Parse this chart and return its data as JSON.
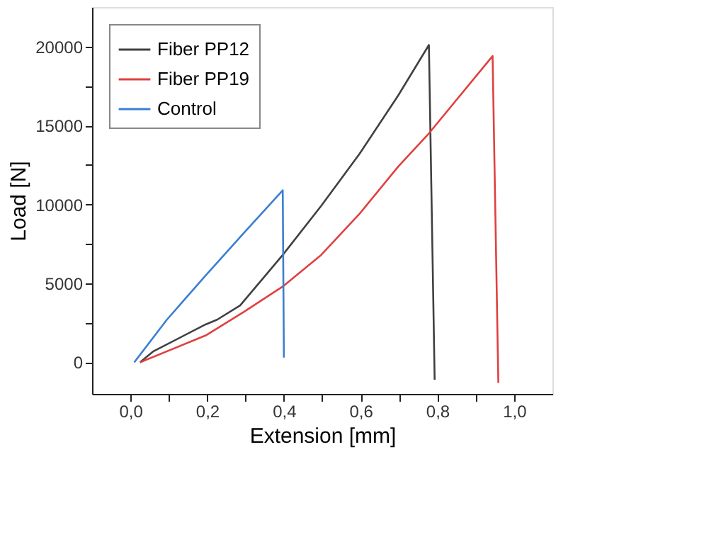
{
  "chart_data": {
    "type": "line",
    "xlabel": "Extension [mm]",
    "ylabel": "Load [N]",
    "xlim": [
      -0.1,
      1.1
    ],
    "ylim": [
      -2000,
      22500
    ],
    "xticks": [
      {
        "value": 0,
        "label": "0,0"
      },
      {
        "value": 0.1,
        "label": null
      },
      {
        "value": 0.2,
        "label": "0,2"
      },
      {
        "value": 0.3,
        "label": null
      },
      {
        "value": 0.4,
        "label": "0,4"
      },
      {
        "value": 0.5,
        "label": null
      },
      {
        "value": 0.6,
        "label": "0,6"
      },
      {
        "value": 0.7,
        "label": null
      },
      {
        "value": 0.8,
        "label": "0,8"
      },
      {
        "value": 0.9,
        "label": null
      },
      {
        "value": 1.0,
        "label": "1,0"
      }
    ],
    "yticks": [
      0,
      {
        "value": 2500,
        "label": null
      },
      5000,
      {
        "value": 7500,
        "label": null
      },
      10000,
      {
        "value": 12500,
        "label": null
      },
      15000,
      {
        "value": 17500,
        "label": null
      },
      20000
    ],
    "grid": false,
    "legend": "top left",
    "line_style": "solid",
    "marker": "none",
    "series": [
      {
        "name": "Fiber PP12",
        "color": "#404040",
        "x": [
          0.025,
          0.06,
          0.196,
          0.226,
          0.286,
          0.397,
          0.497,
          0.597,
          0.698,
          0.778,
          0.793
        ],
        "values": [
          0,
          700,
          2400,
          2700,
          3600,
          6800,
          9900,
          13200,
          16900,
          20100,
          -1100
        ]
      },
      {
        "name": "Fiber PP19",
        "color": "#e04040",
        "x": [
          0.025,
          0.196,
          0.296,
          0.397,
          0.497,
          0.597,
          0.698,
          0.778,
          0.944,
          0.959
        ],
        "values": [
          0,
          1700,
          3200,
          4800,
          6800,
          9400,
          12400,
          14500,
          19400,
          -1300
        ]
      },
      {
        "name": "Control",
        "color": "#3a7fd0",
        "x": [
          0.01,
          0.095,
          0.196,
          0.296,
          0.397,
          0.4
        ],
        "values": [
          0,
          2700,
          5500,
          8200,
          10900,
          300
        ]
      }
    ]
  }
}
